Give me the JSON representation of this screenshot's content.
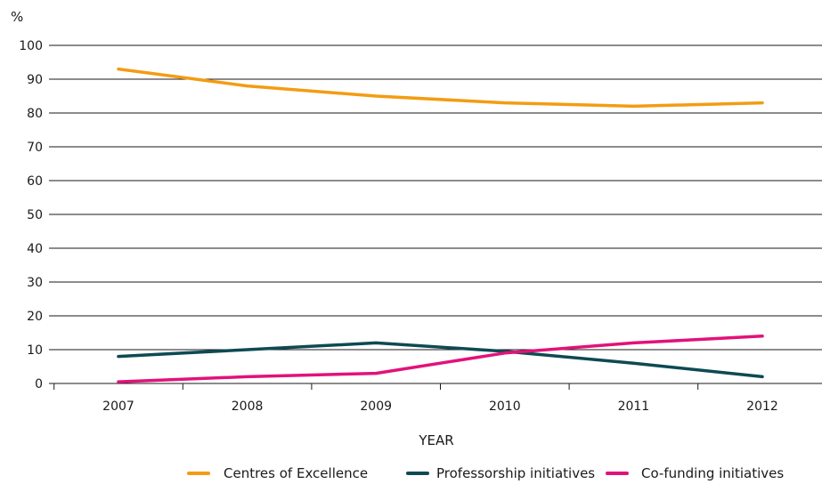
{
  "chart_data": {
    "type": "line",
    "ylabel": "%",
    "xlabel": "YEAR",
    "ylim": [
      0,
      100
    ],
    "yticks": [
      0,
      10,
      20,
      30,
      40,
      50,
      60,
      70,
      80,
      90,
      100
    ],
    "categories": [
      "2007",
      "2008",
      "2009",
      "2010",
      "2011",
      "2012"
    ],
    "grid": "horizontal",
    "legend_position": "bottom-right",
    "series": [
      {
        "name": "Centres of Excellence",
        "color": "#f39c12",
        "values": [
          93,
          88,
          85,
          83,
          82,
          83
        ]
      },
      {
        "name": "Professorship initiatives",
        "color": "#0e4a52",
        "values": [
          8,
          10,
          12,
          9.5,
          6,
          2
        ]
      },
      {
        "name": "Co-funding initiatives",
        "color": "#e2127a",
        "values": [
          0.5,
          2,
          3,
          9,
          12,
          14
        ]
      }
    ]
  }
}
